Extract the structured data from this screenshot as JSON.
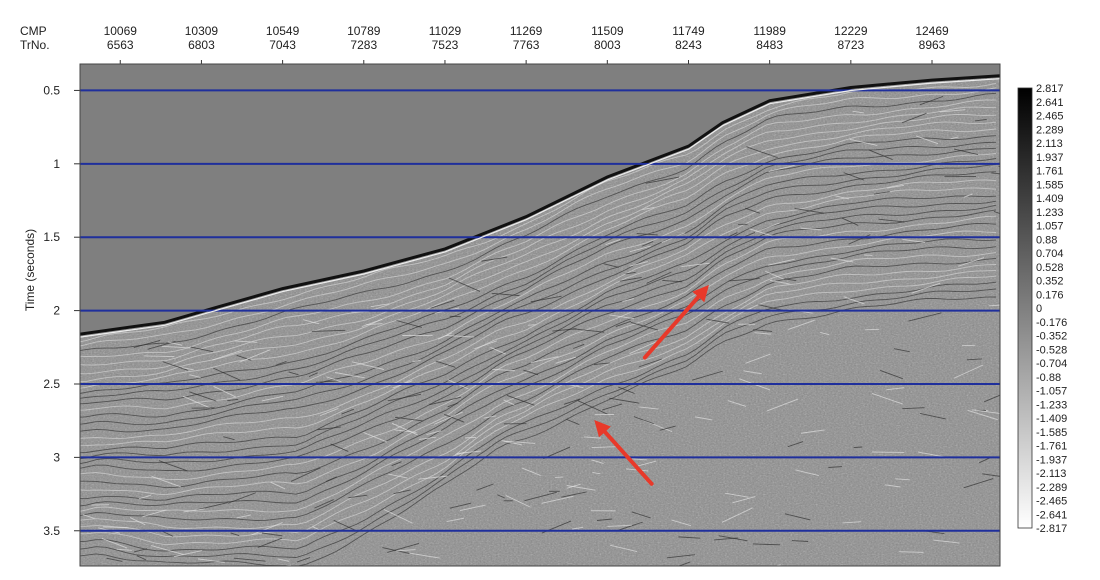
{
  "chart_data": {
    "type": "heatmap",
    "title": "",
    "header_labels": [
      "CMP",
      "TrNo."
    ],
    "x_axis": {
      "position": "top",
      "cmp_ticks": [
        "10069",
        "10309",
        "10549",
        "10789",
        "11029",
        "11269",
        "11509",
        "11749",
        "11989",
        "12229",
        "12469"
      ],
      "trace_ticks": [
        "6563",
        "6803",
        "7043",
        "7283",
        "7523",
        "7763",
        "8003",
        "8243",
        "8483",
        "8723",
        "8963"
      ]
    },
    "y_axis": {
      "label": "Time (seconds)",
      "ticks": [
        "0.5",
        "1",
        "1.5",
        "2",
        "2.5",
        "3",
        "3.5"
      ],
      "tick_values": [
        0.5,
        1.0,
        1.5,
        2.0,
        2.5,
        3.0,
        3.5
      ],
      "range": [
        0.32,
        3.74
      ],
      "inverted": true
    },
    "x_range": [
      9950,
      12670
    ],
    "grid": {
      "horizontal": true,
      "color": "#1f2f9c"
    },
    "colorbar": {
      "position": "right",
      "labels": [
        "2.817",
        "2.641",
        "2.465",
        "2.289",
        "2.113",
        "1.937",
        "1.761",
        "1.585",
        "1.409",
        "1.233",
        "1.057",
        "0.88",
        "0.704",
        "0.528",
        "0.352",
        "0.176",
        "0",
        "-0.176",
        "-0.352",
        "-0.528",
        "-0.704",
        "-0.88",
        "-1.057",
        "-1.233",
        "-1.409",
        "-1.585",
        "-1.761",
        "-1.937",
        "-2.113",
        "-2.289",
        "-2.465",
        "-2.641",
        "-2.817"
      ],
      "range": [
        -2.817,
        2.817
      ],
      "colormap": [
        "#ffffff",
        "#000000"
      ]
    },
    "seafloor_horizon": [
      {
        "cmp": 9950,
        "t": 2.16
      },
      {
        "cmp": 10200,
        "t": 2.08
      },
      {
        "cmp": 10350,
        "t": 1.98
      },
      {
        "cmp": 10549,
        "t": 1.85
      },
      {
        "cmp": 10789,
        "t": 1.73
      },
      {
        "cmp": 11029,
        "t": 1.58
      },
      {
        "cmp": 11269,
        "t": 1.36
      },
      {
        "cmp": 11509,
        "t": 1.09
      },
      {
        "cmp": 11749,
        "t": 0.88
      },
      {
        "cmp": 11850,
        "t": 0.72
      },
      {
        "cmp": 11989,
        "t": 0.57
      },
      {
        "cmp": 12229,
        "t": 0.48
      },
      {
        "cmp": 12469,
        "t": 0.43
      },
      {
        "cmp": 12670,
        "t": 0.4
      }
    ],
    "annotations": [
      {
        "type": "arrow",
        "color": "#e8392a",
        "from": {
          "cmp": 11620,
          "t": 2.32
        },
        "to": {
          "cmp": 11800,
          "t": 1.85
        }
      },
      {
        "type": "arrow",
        "color": "#e8392a",
        "from": {
          "cmp": 11640,
          "t": 3.18
        },
        "to": {
          "cmp": 11480,
          "t": 2.77
        }
      }
    ],
    "colors": {
      "water": "#7f7f7f",
      "grid_line": "#1f2f9c",
      "arrow": "#e8392a"
    }
  }
}
